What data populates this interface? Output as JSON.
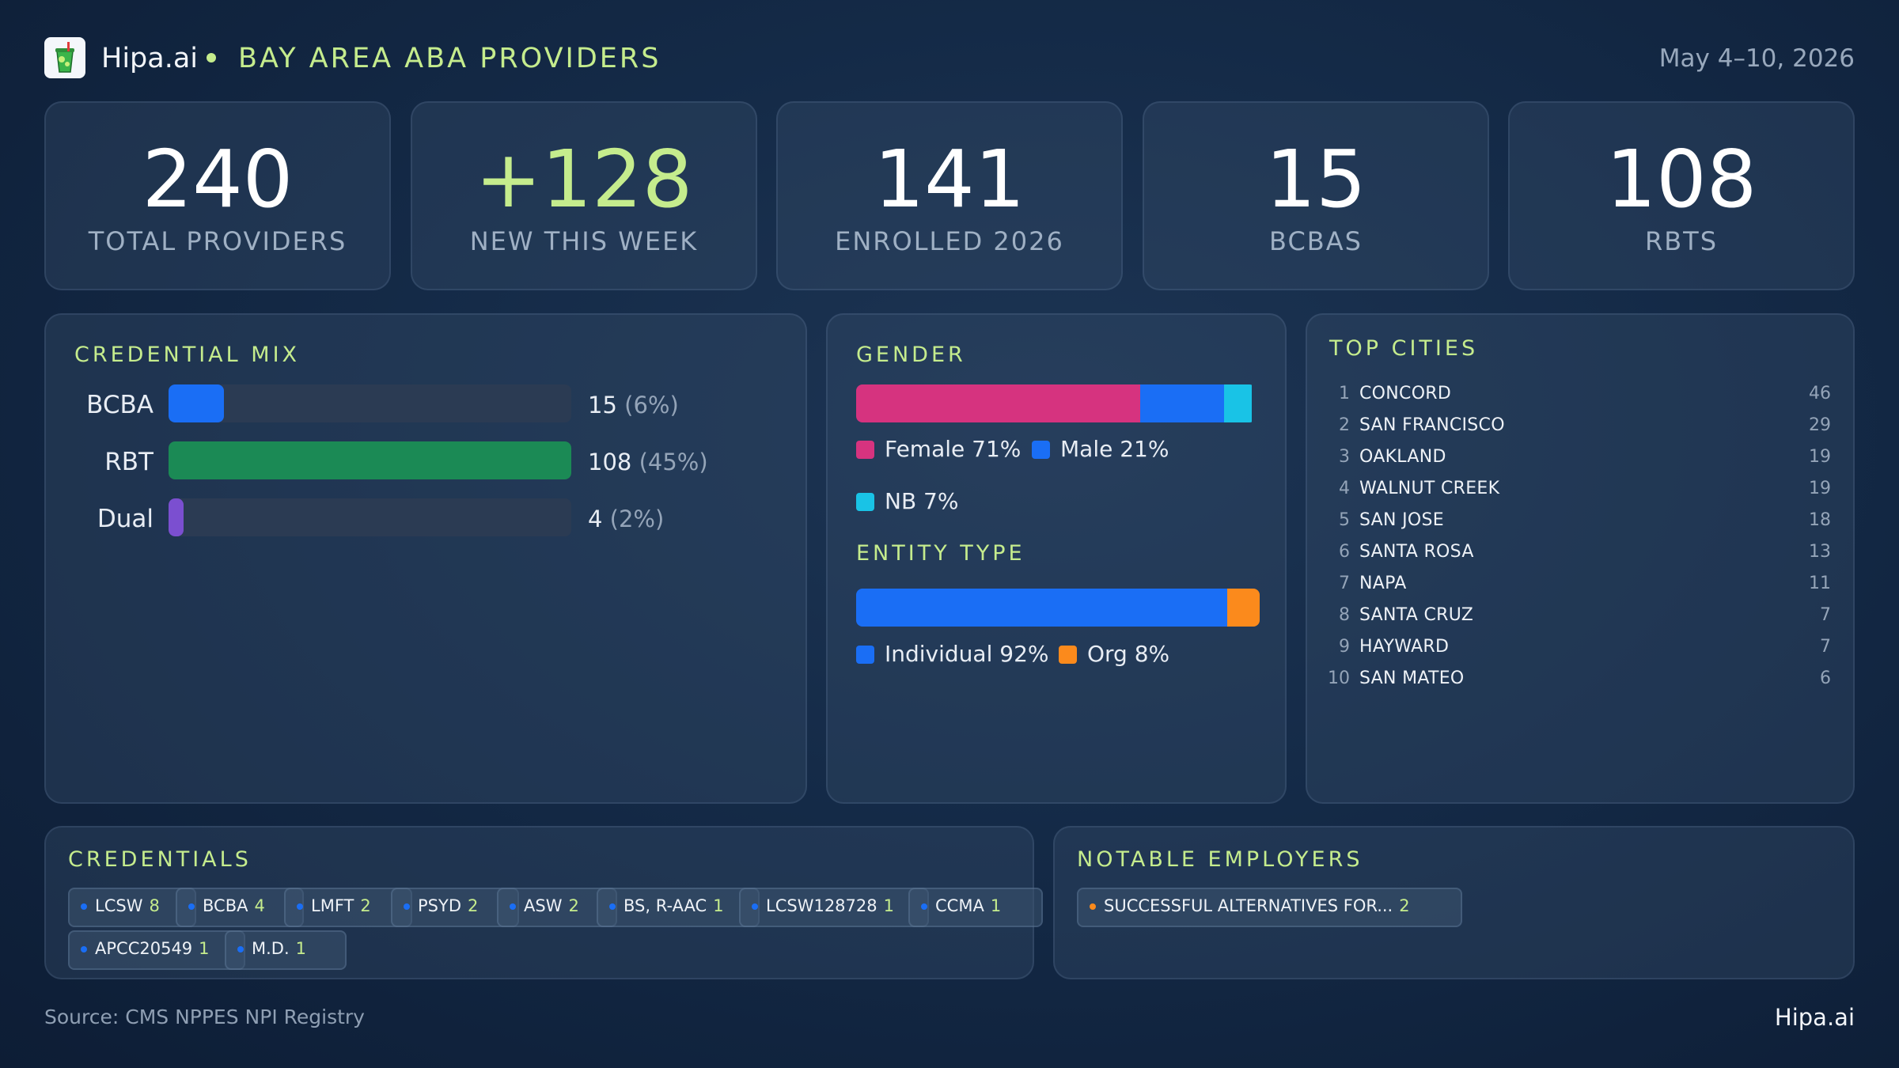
{
  "header": {
    "brand": "Hipa.ai",
    "title": "BAY AREA ABA PROVIDERS",
    "date_range": "May 4–10, 2026",
    "logo_icon": "cup-icon"
  },
  "stats": [
    {
      "value": "240",
      "label": "TOTAL PROVIDERS"
    },
    {
      "value": "+128",
      "label": "NEW THIS WEEK"
    },
    {
      "value": "141",
      "label": "ENROLLED 2026"
    },
    {
      "value": "15",
      "label": "BCBAS"
    },
    {
      "value": "108",
      "label": "RBTS"
    }
  ],
  "credential_mix": {
    "title": "CREDENTIAL MIX",
    "rows": [
      {
        "label": "BCBA",
        "count": "15",
        "pct": "(6%)",
        "fraction": 0.138,
        "color": "#1a6ef5"
      },
      {
        "label": "RBT",
        "count": "108",
        "pct": "(45%)",
        "fraction": 1.0,
        "color": "#1b8a55"
      },
      {
        "label": "Dual",
        "count": "4",
        "pct": "(2%)",
        "fraction": 0.037,
        "color": "#7b4fd0"
      }
    ]
  },
  "gender": {
    "title": "GENDER",
    "segments": [
      {
        "label": "Female 71%",
        "fraction": 0.71,
        "color": "#d6337f"
      },
      {
        "label": "Male 21%",
        "fraction": 0.21,
        "color": "#1a6ef5"
      },
      {
        "label": "NB 7%",
        "fraction": 0.07,
        "color": "#19c3e6"
      }
    ]
  },
  "entity_type": {
    "title": "ENTITY TYPE",
    "segments": [
      {
        "label": "Individual 92%",
        "fraction": 0.92,
        "color": "#1a6ef5"
      },
      {
        "label": "Org 8%",
        "fraction": 0.08,
        "color": "#fb8a1c"
      }
    ]
  },
  "top_cities": {
    "title": "TOP CITIES",
    "rows": [
      {
        "rank": "1",
        "name": "CONCORD",
        "count": "46"
      },
      {
        "rank": "2",
        "name": "SAN FRANCISCO",
        "count": "29"
      },
      {
        "rank": "3",
        "name": "OAKLAND",
        "count": "19"
      },
      {
        "rank": "4",
        "name": "WALNUT CREEK",
        "count": "19"
      },
      {
        "rank": "5",
        "name": "SAN JOSE",
        "count": "18"
      },
      {
        "rank": "6",
        "name": "SANTA ROSA",
        "count": "13"
      },
      {
        "rank": "7",
        "name": "NAPA",
        "count": "11"
      },
      {
        "rank": "8",
        "name": "SANTA CRUZ",
        "count": "7"
      },
      {
        "rank": "9",
        "name": "HAYWARD",
        "count": "7"
      },
      {
        "rank": "10",
        "name": "SAN MATEO",
        "count": "6"
      }
    ]
  },
  "credentials": {
    "title": "CREDENTIALS",
    "chips": [
      {
        "label": "LCSW",
        "count": "8"
      },
      {
        "label": "BCBA",
        "count": "4"
      },
      {
        "label": "LMFT",
        "count": "2"
      },
      {
        "label": "PSYD",
        "count": "2"
      },
      {
        "label": "ASW",
        "count": "2"
      },
      {
        "label": "BS, R-AAC",
        "count": "1"
      },
      {
        "label": "LCSW128728",
        "count": "1"
      },
      {
        "label": "CCMA",
        "count": "1"
      },
      {
        "label": "APCC20549",
        "count": "1"
      },
      {
        "label": "M.D.",
        "count": "1"
      }
    ],
    "dot_color": "#1a6ef5"
  },
  "employers": {
    "title": "NOTABLE EMPLOYERS",
    "chips": [
      {
        "label": "SUCCESSFUL ALTERNATIVES FOR...",
        "count": "2"
      }
    ],
    "dot_color": "#fb8a1c"
  },
  "footer": {
    "source": "Source: CMS NPPES NPI Registry",
    "brand": "Hipa.ai"
  }
}
